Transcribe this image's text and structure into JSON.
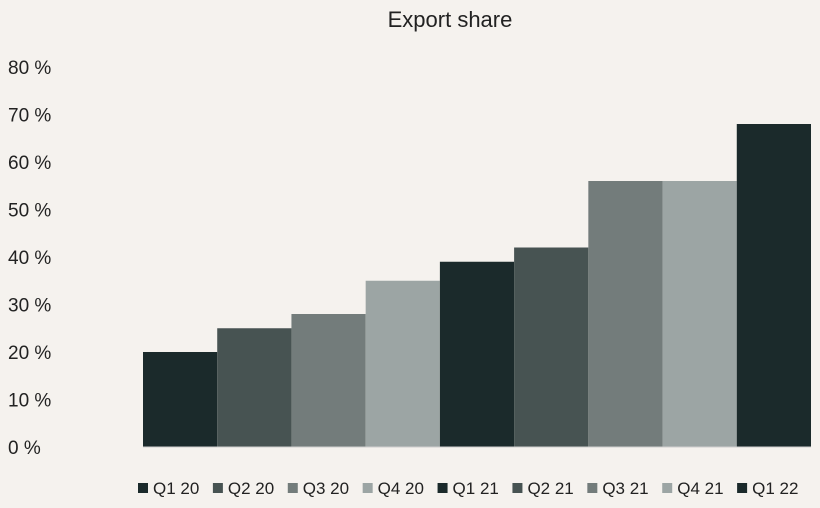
{
  "chart_data": {
    "type": "bar",
    "title": "Export share",
    "xlabel": "",
    "ylabel": "",
    "categories": [
      "Q1 20",
      "Q2 20",
      "Q3 20",
      "Q4 20",
      "Q1 21",
      "Q2 21",
      "Q3 21",
      "Q4 21",
      "Q1 22"
    ],
    "values": [
      20,
      25,
      28,
      35,
      39,
      42,
      56,
      56,
      68
    ],
    "ylim": [
      0,
      80
    ],
    "yticks": [
      0,
      10,
      20,
      30,
      40,
      50,
      60,
      70,
      80
    ],
    "ytick_labels": [
      "0 %",
      "10 %",
      "20 %",
      "30 %",
      "40 %",
      "50 %",
      "60 %",
      "70 %",
      "80 %"
    ],
    "grid": false,
    "legend_position": "bottom",
    "colors": [
      "#1b2a2b",
      "#475352",
      "#737c7b",
      "#9ca5a4",
      "#1b2a2b",
      "#475352",
      "#737c7b",
      "#9ca5a4",
      "#1b2a2b"
    ]
  }
}
